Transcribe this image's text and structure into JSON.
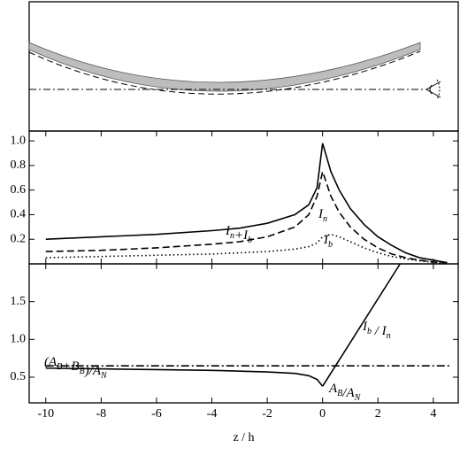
{
  "chart_data": [
    {
      "type": "line",
      "xlim": [
        -10.6,
        4.9
      ],
      "xticks": [
        -10,
        -8,
        -6,
        -4,
        -2,
        0,
        2,
        4
      ],
      "ylim": [
        0,
        1.08
      ],
      "yticks": [
        0.2,
        0.4,
        0.6,
        0.8,
        {
          "value": 1,
          "label": "1.0"
        }
      ],
      "series": [
        {
          "dash": "solid",
          "color": "#000000",
          "x": [
            -10,
            -8,
            -6,
            -4,
            -3,
            -2,
            -1,
            -0.5,
            -0.2,
            0,
            0.3,
            0.6,
            1,
            1.5,
            2,
            2.5,
            3,
            3.5,
            4,
            4.5
          ],
          "values": [
            0.2,
            0.22,
            0.24,
            0.27,
            0.29,
            0.33,
            0.4,
            0.48,
            0.62,
            0.98,
            0.75,
            0.6,
            0.45,
            0.32,
            0.22,
            0.15,
            0.09,
            0.05,
            0.03,
            0.01
          ]
        },
        {
          "dash": "dashed",
          "color": "#000000",
          "x": [
            -10,
            -8,
            -6,
            -4,
            -3,
            -2,
            -1,
            -0.5,
            -0.2,
            0,
            0.3,
            0.6,
            1,
            1.5,
            2,
            2.5,
            3,
            3.5,
            4,
            4.5
          ],
          "values": [
            0.1,
            0.11,
            0.13,
            0.16,
            0.18,
            0.22,
            0.3,
            0.4,
            0.55,
            0.75,
            0.55,
            0.42,
            0.3,
            0.2,
            0.13,
            0.08,
            0.05,
            0.03,
            0.015,
            0.01
          ]
        },
        {
          "dash": "dotted",
          "color": "#000000",
          "x": [
            -10,
            -8,
            -6,
            -4,
            -3,
            -2,
            -1,
            -0.5,
            -0.2,
            0,
            0.3,
            0.6,
            1,
            1.5,
            2,
            2.5,
            3,
            3.5,
            4,
            4.5
          ],
          "values": [
            0.05,
            0.06,
            0.07,
            0.08,
            0.09,
            0.1,
            0.12,
            0.14,
            0.17,
            0.22,
            0.24,
            0.22,
            0.18,
            0.13,
            0.09,
            0.06,
            0.04,
            0.025,
            0.012,
            0.005
          ]
        }
      ],
      "annotations": [
        {
          "parts": [
            [
              "I",
              "n"
            ],
            [
              "+I",
              "b"
            ]
          ]
        },
        {
          "parts": [
            [
              "I",
              "n"
            ]
          ]
        },
        {
          "parts": [
            [
              "I",
              "b"
            ]
          ]
        }
      ]
    },
    {
      "type": "line",
      "xlabel": "z / h",
      "xlim": [
        -10.6,
        4.9
      ],
      "xticks": [
        -10,
        -8,
        -6,
        -4,
        -2,
        0,
        2,
        4
      ],
      "ylim": [
        0.16,
        2.0
      ],
      "yticks": [
        0.5,
        {
          "value": 1,
          "label": "1.0"
        },
        1.5
      ],
      "series": [
        {
          "dash": "solid",
          "color": "#000000",
          "x": [
            -10,
            -8,
            -6,
            -4,
            -2,
            -1,
            -0.5,
            -0.2,
            0
          ],
          "values": [
            0.62,
            0.61,
            0.6,
            0.59,
            0.57,
            0.55,
            0.52,
            0.47,
            0.38
          ]
        },
        {
          "dash": "solid",
          "color": "#000000",
          "x": [
            0,
            2.8
          ],
          "values": [
            0.38,
            2.0
          ]
        },
        {
          "dash": "dashdot",
          "color": "#000000",
          "x": [
            -10,
            4.6
          ],
          "values": [
            0.65,
            0.65
          ]
        }
      ],
      "annotations": [
        {
          "parts": [
            [
              "(A",
              "B"
            ],
            [
              "+B",
              "B"
            ],
            [
              ")/A",
              "N"
            ]
          ]
        },
        {
          "parts": [
            [
              "I",
              "b"
            ],
            [
              " / I",
              "n"
            ]
          ]
        },
        {
          "parts": [
            [
              "A",
              "B"
            ],
            [
              "/A",
              "N"
            ]
          ]
        }
      ]
    }
  ]
}
